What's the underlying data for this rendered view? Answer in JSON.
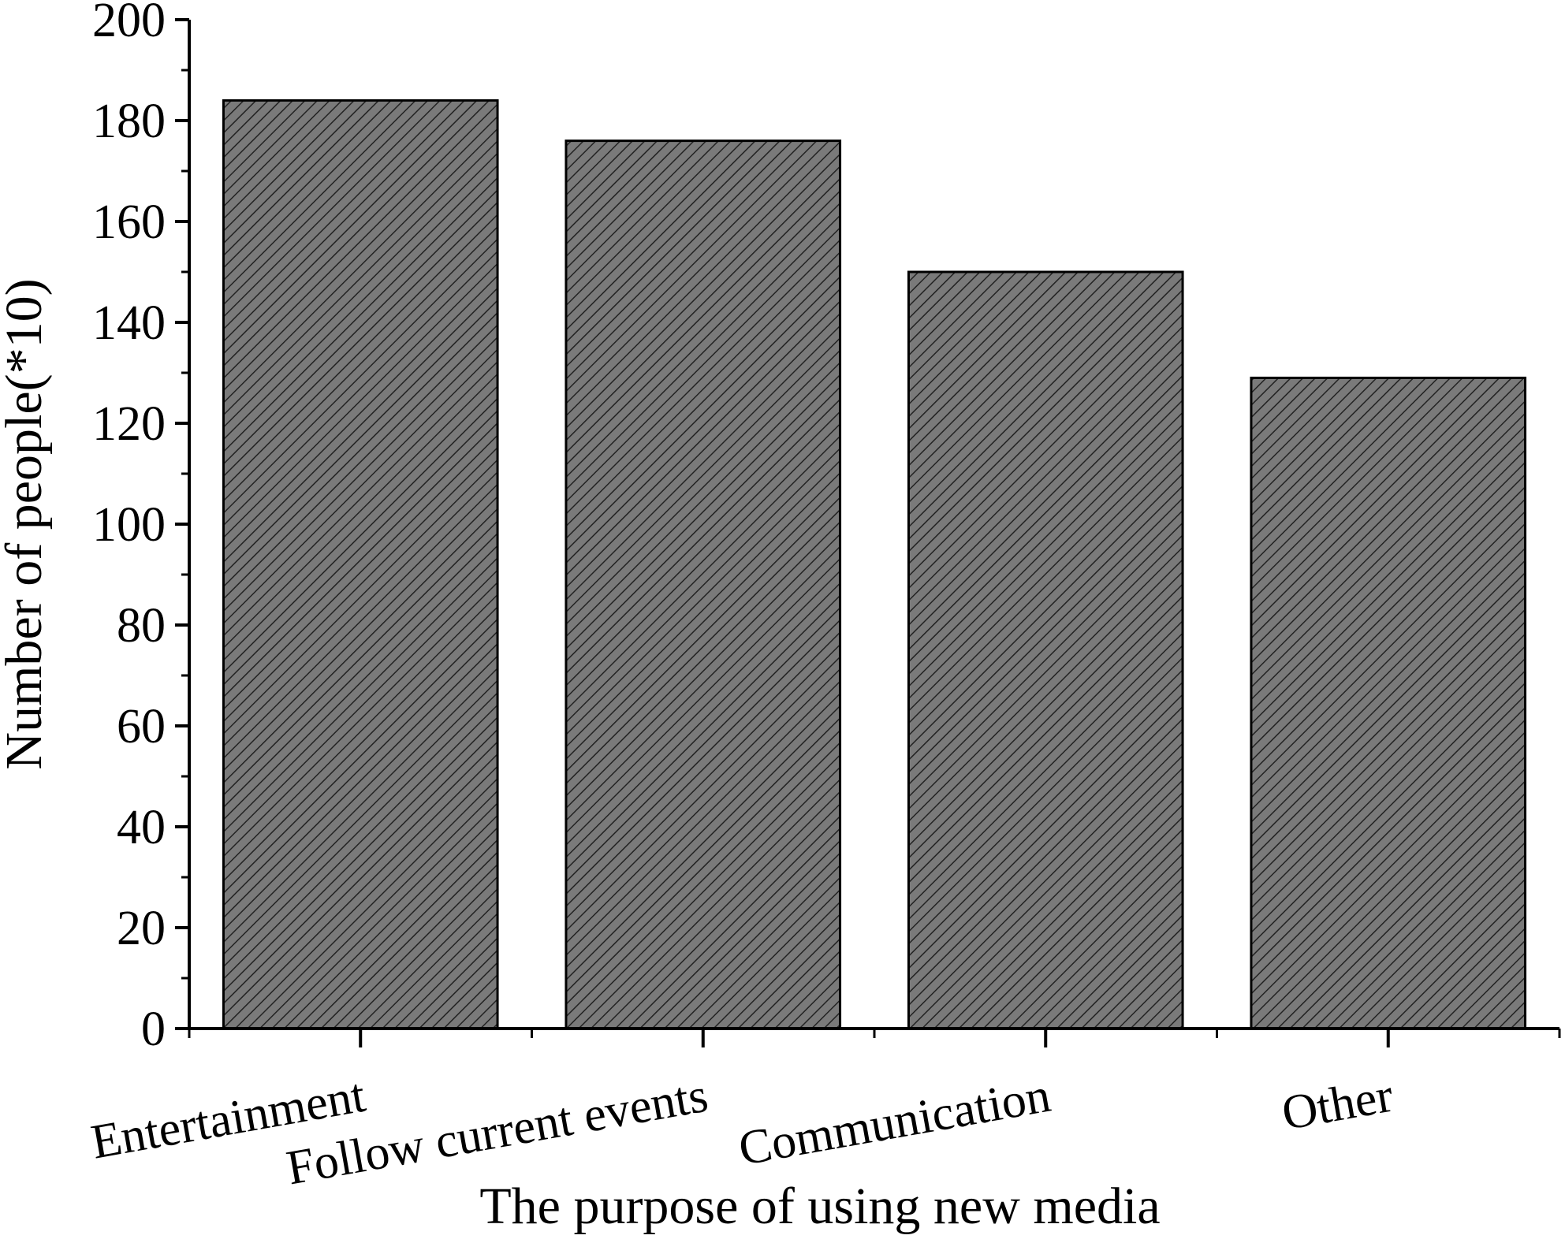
{
  "chart_data": {
    "type": "bar",
    "title": "",
    "xlabel": "The purpose of using new media",
    "ylabel": "Number of people(*10)",
    "categories": [
      "Entertainment",
      "Follow current events",
      "Communication",
      "Other"
    ],
    "values": [
      184,
      176,
      150,
      129
    ],
    "ylim": [
      0,
      200
    ],
    "yticks": [
      "0",
      "20",
      "40",
      "60",
      "80",
      "100",
      "120",
      "140",
      "160",
      "180",
      "200"
    ],
    "grid": false,
    "legend": "none",
    "bar_fill": "#7a7a7a",
    "bar_hatch": "#222222",
    "bar_edge": "#000000"
  }
}
